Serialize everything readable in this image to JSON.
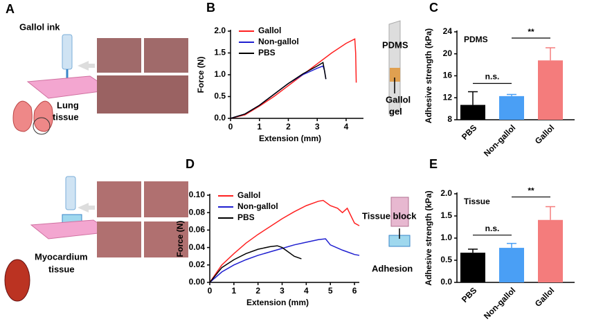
{
  "panel_a": {
    "panel": "A",
    "ink_label": "Gallol ink",
    "lung_label": [
      "Lung",
      "tissue"
    ],
    "myo_label": [
      "Myocardium",
      "tissue"
    ]
  },
  "schematic_b": {
    "pdms_label": "PDMS",
    "gel_label": [
      "Gallol",
      "gel"
    ]
  },
  "schematic_d": {
    "block_label": "Tissue block",
    "adhesion_label": "Adhesion"
  },
  "chart_data": [
    {
      "type": "line",
      "panel": "B",
      "xlabel": "Extension (mm)",
      "ylabel": "Force (N)",
      "xlim": [
        0,
        4.6
      ],
      "xticks": [
        0,
        1,
        2,
        3,
        4
      ],
      "ylim": [
        0,
        2.0
      ],
      "yticks": [
        {
          "value": 0,
          "label": "0.0"
        },
        0.5,
        {
          "value": 1,
          "label": "1.0"
        },
        1.5,
        {
          "value": 2,
          "label": "2.0"
        }
      ],
      "series": [
        {
          "name": "Gallol",
          "color": "#ff2020",
          "x": [
            0,
            0.5,
            1,
            1.5,
            2,
            2.5,
            3,
            3.5,
            4,
            4.3,
            4.33,
            4.35
          ],
          "values": [
            0,
            0.08,
            0.28,
            0.5,
            0.75,
            1.0,
            1.25,
            1.5,
            1.72,
            1.82,
            1.5,
            0.82
          ]
        },
        {
          "name": "Non-gallol",
          "color": "#1f1fd0",
          "x": [
            0,
            0.5,
            1,
            1.5,
            2,
            2.5,
            3,
            3.2,
            3.25,
            3.3
          ],
          "values": [
            0,
            0.1,
            0.3,
            0.55,
            0.8,
            1.0,
            1.15,
            1.2,
            1.1,
            0.9
          ]
        },
        {
          "name": "PBS",
          "color": "#000000",
          "x": [
            0,
            0.5,
            1,
            1.5,
            2,
            2.5,
            3,
            3.2,
            3.25,
            3.3
          ],
          "values": [
            0,
            0.1,
            0.3,
            0.55,
            0.8,
            1.02,
            1.2,
            1.28,
            1.1,
            0.9
          ]
        }
      ]
    },
    {
      "type": "bar",
      "panel": "C",
      "ylabel": "Adhesive strength (kPa)",
      "inner_label": "PDMS",
      "categories": [
        "PBS",
        "Non-gallol",
        "Gallol"
      ],
      "values": [
        10.7,
        12.3,
        18.8
      ],
      "errors": [
        2.4,
        0.3,
        2.3
      ],
      "colors": [
        "#000000",
        "#4a9ff5",
        "#f47c7c"
      ],
      "ylim": [
        8,
        24
      ],
      "yticks": [
        8,
        12,
        16,
        20,
        24
      ],
      "annotations": [
        "n.s.",
        "**"
      ]
    },
    {
      "type": "line",
      "panel": "D",
      "xlabel": "Extension (mm)",
      "ylabel": "Force (N)",
      "xlim": [
        0,
        6.2
      ],
      "xticks": [
        0,
        1,
        2,
        3,
        4,
        5,
        6
      ],
      "ylim": [
        0,
        0.1
      ],
      "yticks": [
        {
          "value": 0,
          "label": "0.00"
        },
        0.02,
        0.04,
        0.06,
        0.08,
        {
          "value": 0.1,
          "label": "0.10"
        }
      ],
      "series": [
        {
          "name": "Gallol",
          "color": "#ff2020",
          "x": [
            0,
            0.5,
            1,
            1.5,
            2,
            2.5,
            3,
            3.5,
            4,
            4.5,
            4.7,
            5,
            5.3,
            5.5,
            5.7,
            6,
            6.2
          ],
          "values": [
            0,
            0.02,
            0.033,
            0.045,
            0.055,
            0.064,
            0.073,
            0.081,
            0.088,
            0.093,
            0.094,
            0.088,
            0.085,
            0.08,
            0.085,
            0.068,
            0.065
          ]
        },
        {
          "name": "Non-gallol",
          "color": "#1f1fd0",
          "x": [
            0,
            0.5,
            1,
            1.5,
            2,
            2.5,
            3,
            3.5,
            4,
            4.5,
            4.8,
            5,
            5.5,
            6,
            6.2
          ],
          "values": [
            0,
            0.012,
            0.02,
            0.026,
            0.031,
            0.035,
            0.039,
            0.043,
            0.046,
            0.049,
            0.05,
            0.043,
            0.037,
            0.032,
            0.031
          ]
        },
        {
          "name": "PBS",
          "color": "#000000",
          "x": [
            0,
            0.5,
            1,
            1.5,
            2,
            2.5,
            2.8,
            3,
            3.2,
            3.5,
            3.8
          ],
          "values": [
            0,
            0.017,
            0.026,
            0.033,
            0.038,
            0.041,
            0.042,
            0.04,
            0.036,
            0.03,
            0.027
          ]
        }
      ]
    },
    {
      "type": "bar",
      "panel": "E",
      "ylabel": "Adhesive strength (kPa)",
      "inner_label": "Tissue",
      "categories": [
        "PBS",
        "Non-gallol",
        "Gallol"
      ],
      "values": [
        0.67,
        0.78,
        1.41
      ],
      "errors": [
        0.08,
        0.1,
        0.3
      ],
      "colors": [
        "#000000",
        "#4a9ff5",
        "#f47c7c"
      ],
      "ylim": [
        0,
        2.0
      ],
      "yticks": [
        {
          "value": 0,
          "label": "0.0"
        },
        0.5,
        {
          "value": 1,
          "label": "1.0"
        },
        1.5,
        {
          "value": 2,
          "label": "2.0"
        }
      ],
      "annotations": [
        "n.s.",
        "**"
      ]
    }
  ]
}
